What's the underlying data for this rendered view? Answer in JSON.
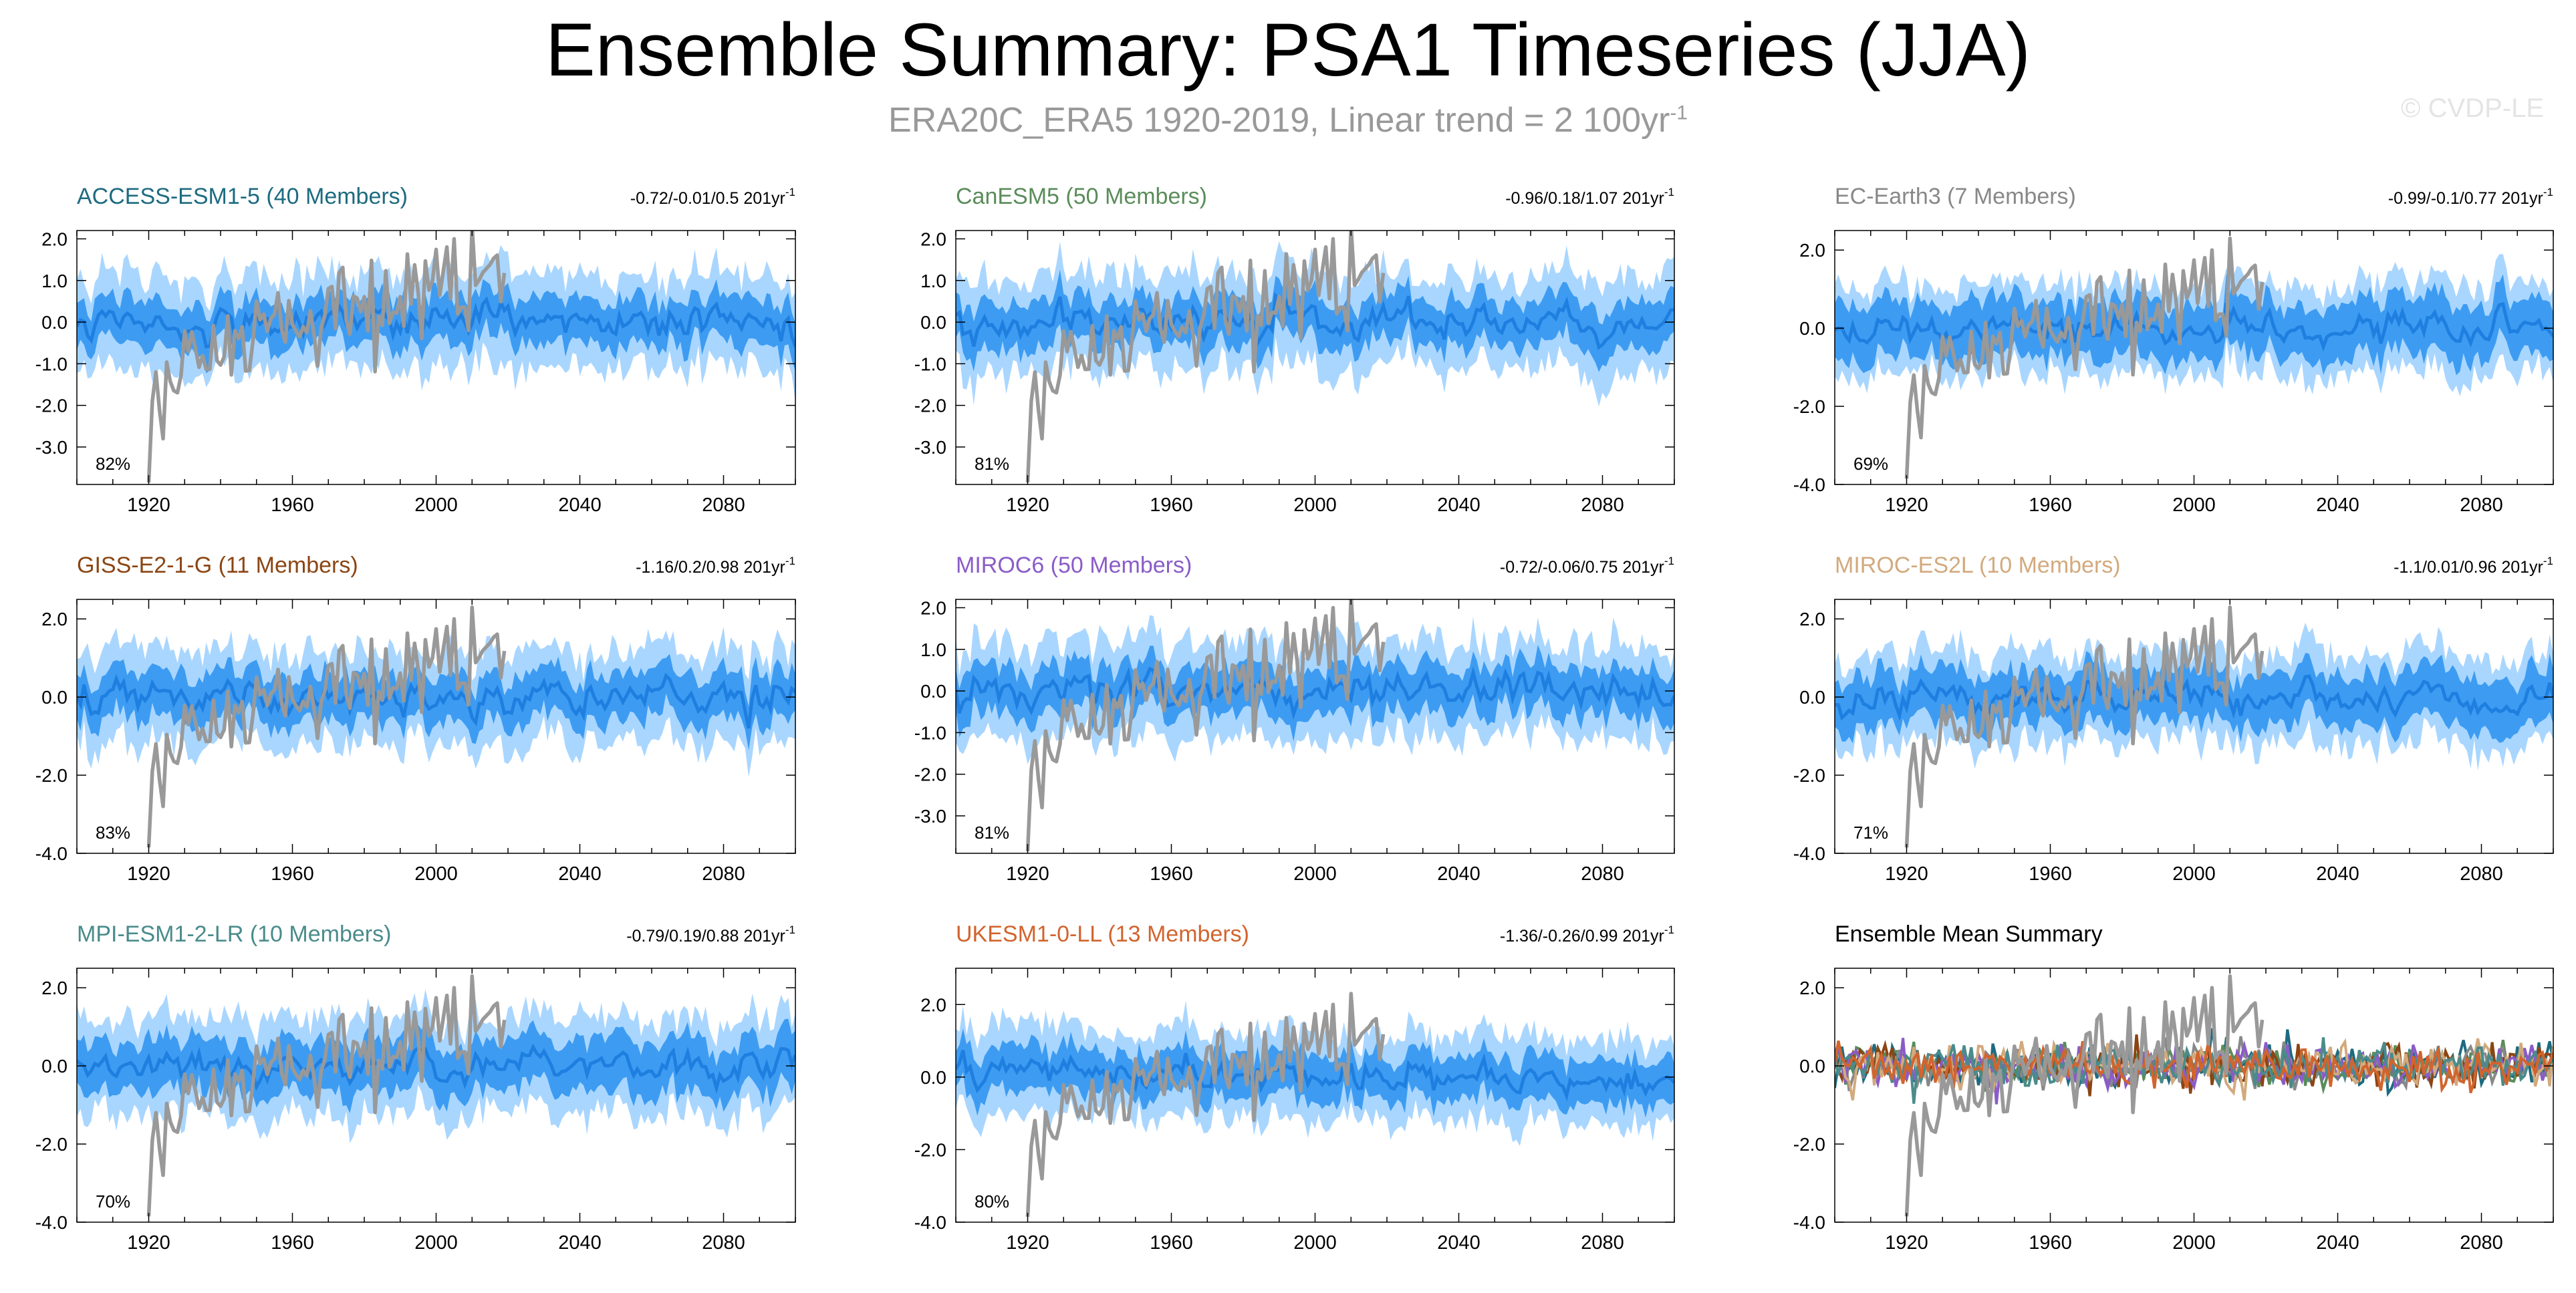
{
  "header": {
    "title": "Ensemble Summary: PSA1 Timeseries (JJA)",
    "subtitle": "ERA20C_ERA5 1920-2019, Linear trend = 2 100yr",
    "subtitle_sup": "-1",
    "copyright": "© CVDP-LE"
  },
  "colors": {
    "outer_band": "#a9d6ff",
    "inner_band": "#3d9cf2",
    "ensemble_mean": "#1f7fe0",
    "observations": "#999999",
    "axes": "#000000"
  },
  "chart_data": [
    {
      "type": "area",
      "title": "ACCESS-ESM1-5 (40 Members)",
      "title_color": "#1d6b80",
      "trend_label": "-0.72/-0.01/0.5 201yr",
      "trend_sup": "-1",
      "percent": "82%",
      "xlim": [
        1900,
        2100
      ],
      "ylim": [
        -3.9,
        2.2
      ],
      "yticks": [
        2.0,
        1.0,
        0.0,
        -1.0,
        -2.0,
        -3.0
      ],
      "ytick_labels": [
        "2.0",
        "1.0",
        "0.0",
        "-1.0",
        "-2.0",
        "-3.0"
      ],
      "xticks": [
        1920,
        1960,
        2000,
        2040,
        2080
      ],
      "ensemble": {
        "x_start": 1900,
        "x_end": 2100,
        "mean": 0.0,
        "inner_halfwidth": 0.55,
        "outer_halfwidth": 1.1,
        "seed": 11
      },
      "observations": {
        "x_start": 1920,
        "x_end": 2019,
        "trend": 0.02,
        "seed": 3
      }
    },
    {
      "type": "area",
      "title": "CanESM5 (50 Members)",
      "title_color": "#5a8c5a",
      "trend_label": "-0.96/0.18/1.07 201yr",
      "trend_sup": "-1",
      "percent": "81%",
      "xlim": [
        1900,
        2100
      ],
      "ylim": [
        -3.9,
        2.2
      ],
      "yticks": [
        2.0,
        1.0,
        0.0,
        -1.0,
        -2.0,
        -3.0
      ],
      "ytick_labels": [
        "2.0",
        "1.0",
        "0.0",
        "-1.0",
        "-2.0",
        "-3.0"
      ],
      "xticks": [
        1920,
        1960,
        2000,
        2040,
        2080
      ],
      "ensemble": {
        "x_start": 1900,
        "x_end": 2100,
        "mean": 0.0,
        "inner_halfwidth": 0.55,
        "outer_halfwidth": 1.1,
        "seed": 22
      },
      "observations": {
        "x_start": 1920,
        "x_end": 2019,
        "trend": 0.02,
        "seed": 3
      }
    },
    {
      "type": "area",
      "title": "EC-Earth3 (7 Members)",
      "title_color": "#888888",
      "trend_label": "-0.99/-0.1/0.77 201yr",
      "trend_sup": "-1",
      "percent": "69%",
      "xlim": [
        1900,
        2100
      ],
      "ylim": [
        -4.0,
        2.5
      ],
      "yticks": [
        2.0,
        0.0,
        -2.0,
        -4.0
      ],
      "ytick_labels": [
        "2.0",
        "0.0",
        "-2.0",
        "-4.0"
      ],
      "xticks": [
        1920,
        1960,
        2000,
        2040,
        2080
      ],
      "ensemble": {
        "x_start": 1900,
        "x_end": 2100,
        "mean": 0.0,
        "inner_halfwidth": 0.7,
        "outer_halfwidth": 1.1,
        "seed": 33
      },
      "observations": {
        "x_start": 1920,
        "x_end": 2019,
        "trend": 0.02,
        "seed": 3
      }
    },
    {
      "type": "area",
      "title": "GISS-E2-1-G (11 Members)",
      "title_color": "#8b4513",
      "trend_label": "-1.16/0.2/0.98 201yr",
      "trend_sup": "-1",
      "percent": "83%",
      "xlim": [
        1900,
        2100
      ],
      "ylim": [
        -4.0,
        2.5
      ],
      "yticks": [
        2.0,
        0.0,
        -2.0,
        -4.0
      ],
      "ytick_labels": [
        "2.0",
        "0.0",
        "-2.0",
        "-4.0"
      ],
      "xticks": [
        1920,
        1960,
        2000,
        2040,
        2080
      ],
      "ensemble": {
        "x_start": 1900,
        "x_end": 2100,
        "mean": 0.0,
        "inner_halfwidth": 0.6,
        "outer_halfwidth": 1.15,
        "seed": 44
      },
      "observations": {
        "x_start": 1920,
        "x_end": 2019,
        "trend": 0.02,
        "seed": 3
      }
    },
    {
      "type": "area",
      "title": "MIROC6 (50 Members)",
      "title_color": "#8a5cc7",
      "trend_label": "-0.72/-0.06/0.75 201yr",
      "trend_sup": "-1",
      "percent": "81%",
      "xlim": [
        1900,
        2100
      ],
      "ylim": [
        -3.9,
        2.2
      ],
      "yticks": [
        2.0,
        1.0,
        0.0,
        -1.0,
        -2.0,
        -3.0
      ],
      "ytick_labels": [
        "2.0",
        "1.0",
        "0.0",
        "-1.0",
        "-2.0",
        "-3.0"
      ],
      "xticks": [
        1920,
        1960,
        2000,
        2040,
        2080
      ],
      "ensemble": {
        "x_start": 1900,
        "x_end": 2100,
        "mean": 0.0,
        "inner_halfwidth": 0.55,
        "outer_halfwidth": 1.1,
        "seed": 55
      },
      "observations": {
        "x_start": 1920,
        "x_end": 2019,
        "trend": 0.02,
        "seed": 3
      }
    },
    {
      "type": "area",
      "title": "MIROC-ES2L (10 Members)",
      "title_color": "#d2aa7d",
      "trend_label": "-1.1/0.01/0.96 201yr",
      "trend_sup": "-1",
      "percent": "71%",
      "xlim": [
        1900,
        2100
      ],
      "ylim": [
        -4.0,
        2.5
      ],
      "yticks": [
        2.0,
        0.0,
        -2.0,
        -4.0
      ],
      "ytick_labels": [
        "2.0",
        "0.0",
        "-2.0",
        "-4.0"
      ],
      "xticks": [
        1920,
        1960,
        2000,
        2040,
        2080
      ],
      "ensemble": {
        "x_start": 1900,
        "x_end": 2100,
        "mean": 0.0,
        "inner_halfwidth": 0.65,
        "outer_halfwidth": 1.15,
        "seed": 66
      },
      "observations": {
        "x_start": 1920,
        "x_end": 2019,
        "trend": 0.02,
        "seed": 3
      }
    },
    {
      "type": "area",
      "title": "MPI-ESM1-2-LR (10 Members)",
      "title_color": "#4a8b8b",
      "trend_label": "-0.79/0.19/0.88 201yr",
      "trend_sup": "-1",
      "percent": "70%",
      "xlim": [
        1900,
        2100
      ],
      "ylim": [
        -4.0,
        2.5
      ],
      "yticks": [
        2.0,
        0.0,
        -2.0,
        -4.0
      ],
      "ytick_labels": [
        "2.0",
        "0.0",
        "-2.0",
        "-4.0"
      ],
      "xticks": [
        1920,
        1960,
        2000,
        2040,
        2080
      ],
      "ensemble": {
        "x_start": 1900,
        "x_end": 2100,
        "mean": 0.0,
        "inner_halfwidth": 0.65,
        "outer_halfwidth": 1.2,
        "seed": 77
      },
      "observations": {
        "x_start": 1920,
        "x_end": 2019,
        "trend": 0.02,
        "seed": 3
      }
    },
    {
      "type": "area",
      "title": "UKESM1-0-LL (13 Members)",
      "title_color": "#d2642d",
      "trend_label": "-1.36/-0.26/0.99 201yr",
      "trend_sup": "-1",
      "percent": "80%",
      "xlim": [
        1900,
        2100
      ],
      "ylim": [
        -4.0,
        3.0
      ],
      "yticks": [
        2.0,
        0.0,
        -2.0,
        -4.0
      ],
      "ytick_labels": [
        "2.0",
        "0.0",
        "-2.0",
        "-4.0"
      ],
      "xticks": [
        1920,
        1960,
        2000,
        2040,
        2080
      ],
      "ensemble": {
        "x_start": 1900,
        "x_end": 2100,
        "mean": 0.0,
        "trend": -0.0025,
        "inner_halfwidth": 0.6,
        "outer_halfwidth": 1.15,
        "seed": 88
      },
      "observations": {
        "x_start": 1920,
        "x_end": 2019,
        "trend": 0.02,
        "seed": 3
      }
    },
    {
      "type": "line",
      "title": "Ensemble Mean Summary",
      "title_color": "#000000",
      "trend_label": "",
      "trend_sup": "",
      "percent": "",
      "xlim": [
        1900,
        2100
      ],
      "ylim": [
        -4.0,
        2.5
      ],
      "yticks": [
        2.0,
        0.0,
        -2.0,
        -4.0
      ],
      "ytick_labels": [
        "2.0",
        "0.0",
        "-2.0",
        "-4.0"
      ],
      "xticks": [
        1920,
        1960,
        2000,
        2040,
        2080
      ],
      "mean_lines": [
        {
          "color": "#1d6b80",
          "seed": 101
        },
        {
          "color": "#5a8c5a",
          "seed": 102
        },
        {
          "color": "#888888",
          "seed": 103
        },
        {
          "color": "#8b4513",
          "seed": 104
        },
        {
          "color": "#8a5cc7",
          "seed": 105
        },
        {
          "color": "#d2aa7d",
          "seed": 106
        },
        {
          "color": "#4a8b8b",
          "seed": 107
        },
        {
          "color": "#d2642d",
          "seed": 108
        }
      ],
      "observations": {
        "x_start": 1920,
        "x_end": 2019,
        "trend": 0.02,
        "seed": 3
      }
    }
  ]
}
